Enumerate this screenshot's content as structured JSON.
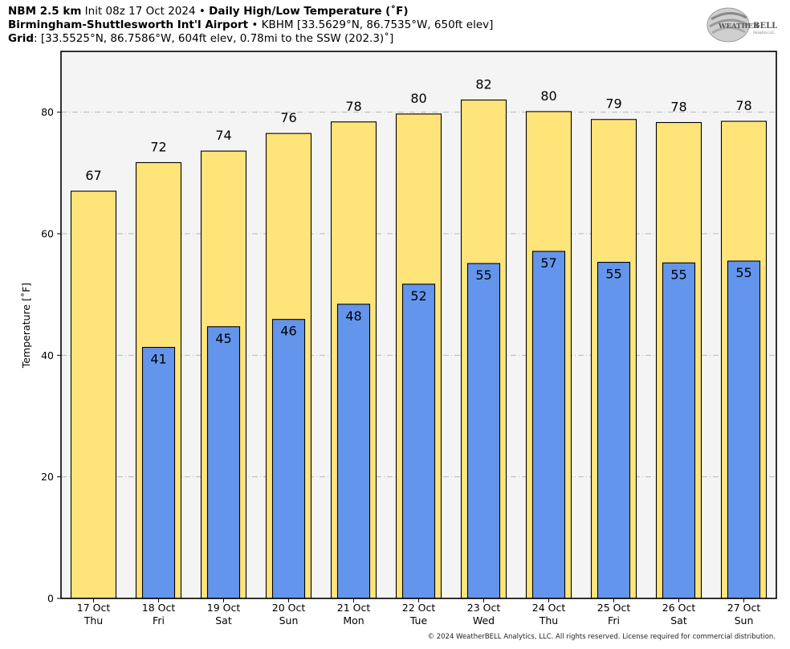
{
  "header": {
    "model": "NBM 2.5 km",
    "init": " Init 08z 17 Oct 2024",
    "sep": " • ",
    "product": "Daily High/Low Temperature (˚F)",
    "station_name": "Birmingham-Shuttlesworth Int'l Airport",
    "station_info": "KBHM [33.5629°N, 86.7535°W, 650ft elev]",
    "grid_label": "Grid",
    "grid_info": ": [33.5525°N, 86.7586°W, 604ft elev, 0.78mi to the SSW (202.3)˚]"
  },
  "logo": {
    "text_top": "WEATHER",
    "text_bell": "BELL",
    "sub": "Analytics LLC"
  },
  "footer": "© 2024 WeatherBELL Analytics, LLC. All rights reserved. License required for commercial distribution.",
  "chart_data": {
    "type": "bar",
    "ylabel": "Temperature [˚F]",
    "ylim": [
      0,
      90
    ],
    "yticks": [
      0,
      20,
      40,
      60,
      80
    ],
    "grid": true,
    "categories": [
      {
        "date": "17 Oct",
        "day": "Thu"
      },
      {
        "date": "18 Oct",
        "day": "Fri"
      },
      {
        "date": "19 Oct",
        "day": "Sat"
      },
      {
        "date": "20 Oct",
        "day": "Sun"
      },
      {
        "date": "21 Oct",
        "day": "Mon"
      },
      {
        "date": "22 Oct",
        "day": "Tue"
      },
      {
        "date": "23 Oct",
        "day": "Wed"
      },
      {
        "date": "24 Oct",
        "day": "Thu"
      },
      {
        "date": "25 Oct",
        "day": "Fri"
      },
      {
        "date": "26 Oct",
        "day": "Sat"
      },
      {
        "date": "27 Oct",
        "day": "Sun"
      }
    ],
    "series": [
      {
        "values": [
          67,
          71.7,
          73.6,
          76.5,
          78.4,
          79.7,
          82,
          80.1,
          78.8,
          78.3,
          78.5
        ],
        "labels": [
          "67",
          "72",
          "74",
          "76",
          "78",
          "80",
          "82",
          "80",
          "79",
          "78",
          "78"
        ],
        "color": "#FFE47A"
      },
      {
        "values": [
          null,
          41.3,
          44.7,
          45.9,
          48.4,
          51.7,
          55.1,
          57.1,
          55.3,
          55.2,
          55.5
        ],
        "labels": [
          "",
          "41",
          "45",
          "46",
          "48",
          "52",
          "55",
          "57",
          "55",
          "55",
          "55"
        ],
        "color": "#6495ED"
      }
    ]
  }
}
